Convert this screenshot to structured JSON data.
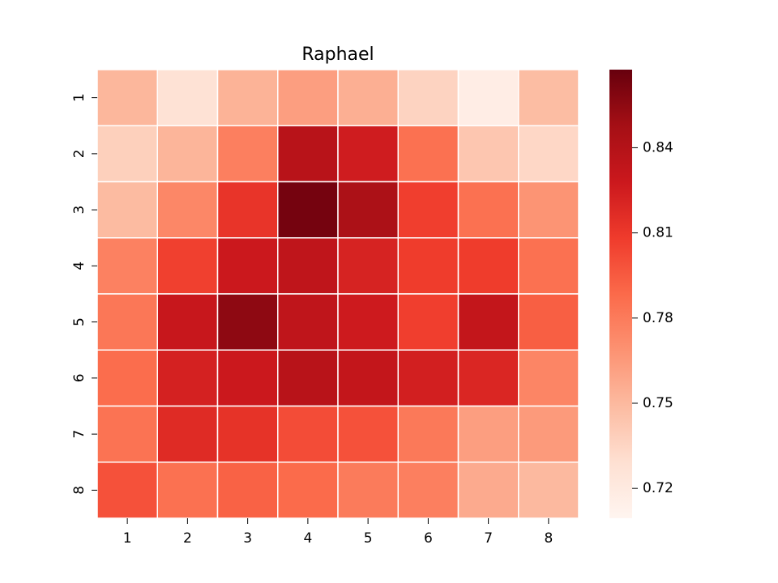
{
  "chart_data": {
    "type": "heatmap",
    "title": "Raphael",
    "xlabel": "",
    "ylabel": "",
    "x_categories": [
      "1",
      "2",
      "3",
      "4",
      "5",
      "6",
      "7",
      "8"
    ],
    "y_categories": [
      "1",
      "2",
      "3",
      "4",
      "5",
      "6",
      "7",
      "8"
    ],
    "values": [
      [
        0.751,
        0.727,
        0.753,
        0.763,
        0.755,
        0.736,
        0.717,
        0.748
      ],
      [
        0.738,
        0.752,
        0.778,
        0.838,
        0.826,
        0.785,
        0.743,
        0.734
      ],
      [
        0.749,
        0.774,
        0.812,
        0.863,
        0.844,
        0.807,
        0.785,
        0.768
      ],
      [
        0.777,
        0.806,
        0.828,
        0.834,
        0.822,
        0.808,
        0.808,
        0.785
      ],
      [
        0.782,
        0.83,
        0.855,
        0.834,
        0.827,
        0.807,
        0.832,
        0.793
      ],
      [
        0.787,
        0.823,
        0.828,
        0.838,
        0.832,
        0.824,
        0.82,
        0.775
      ],
      [
        0.784,
        0.817,
        0.813,
        0.801,
        0.799,
        0.781,
        0.763,
        0.765
      ],
      [
        0.799,
        0.785,
        0.792,
        0.788,
        0.78,
        0.778,
        0.757,
        0.75
      ]
    ],
    "colorbar": {
      "vmin": 0.7095,
      "vmax": 0.8675,
      "ticks": [
        0.72,
        0.75,
        0.78,
        0.81,
        0.84
      ],
      "tick_labels": [
        "0.72",
        "0.75",
        "0.78",
        "0.81",
        "0.84"
      ]
    },
    "colormap": "Reds",
    "colormap_stops": [
      "#fff5f0",
      "#fee0d2",
      "#fcbba1",
      "#fc9272",
      "#fb6a4a",
      "#ef3b2c",
      "#cb181d",
      "#a50f15",
      "#67000d"
    ],
    "cell_border_color": "#ffffff",
    "grid": false
  }
}
